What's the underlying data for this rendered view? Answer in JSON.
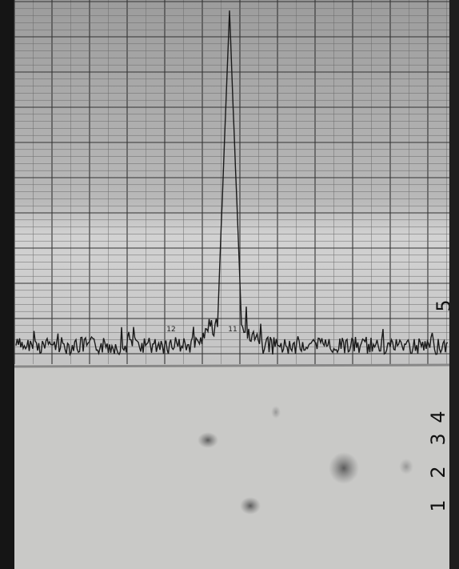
{
  "strip_chart": {
    "labels": [
      "11",
      "12",
      "5"
    ]
  },
  "plate": {
    "lane_labels": [
      "1",
      "2",
      "3",
      "4"
    ]
  }
}
